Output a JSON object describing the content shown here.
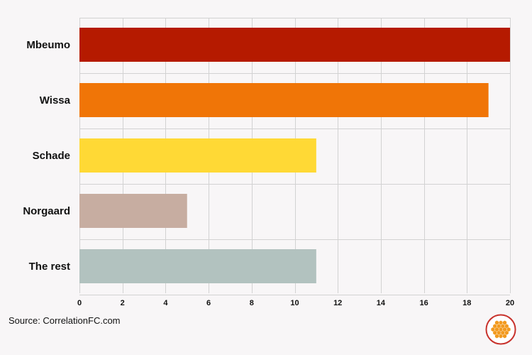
{
  "chart_data": {
    "type": "bar",
    "orientation": "horizontal",
    "categories": [
      "Mbeumo",
      "Wissa",
      "Schade",
      "Norgaard",
      "The rest"
    ],
    "values": [
      20,
      19,
      11,
      5,
      11
    ],
    "colors": [
      "#b51a00",
      "#f07507",
      "#ffd935",
      "#c7ada1",
      "#b2c2bf"
    ],
    "xlim": [
      0,
      20
    ],
    "xticks": [
      0,
      2,
      4,
      6,
      8,
      10,
      12,
      14,
      16,
      18,
      20
    ],
    "grid": true,
    "title": "",
    "xlabel": "",
    "ylabel": ""
  },
  "footer": {
    "source": "Source: CorrelationFC.com",
    "logo": "correlationfc-hexagon-logo"
  },
  "colors": {
    "background": "#f8f6f7",
    "logo_ring": "#c8322c",
    "logo_fill": "#f29a1f"
  }
}
